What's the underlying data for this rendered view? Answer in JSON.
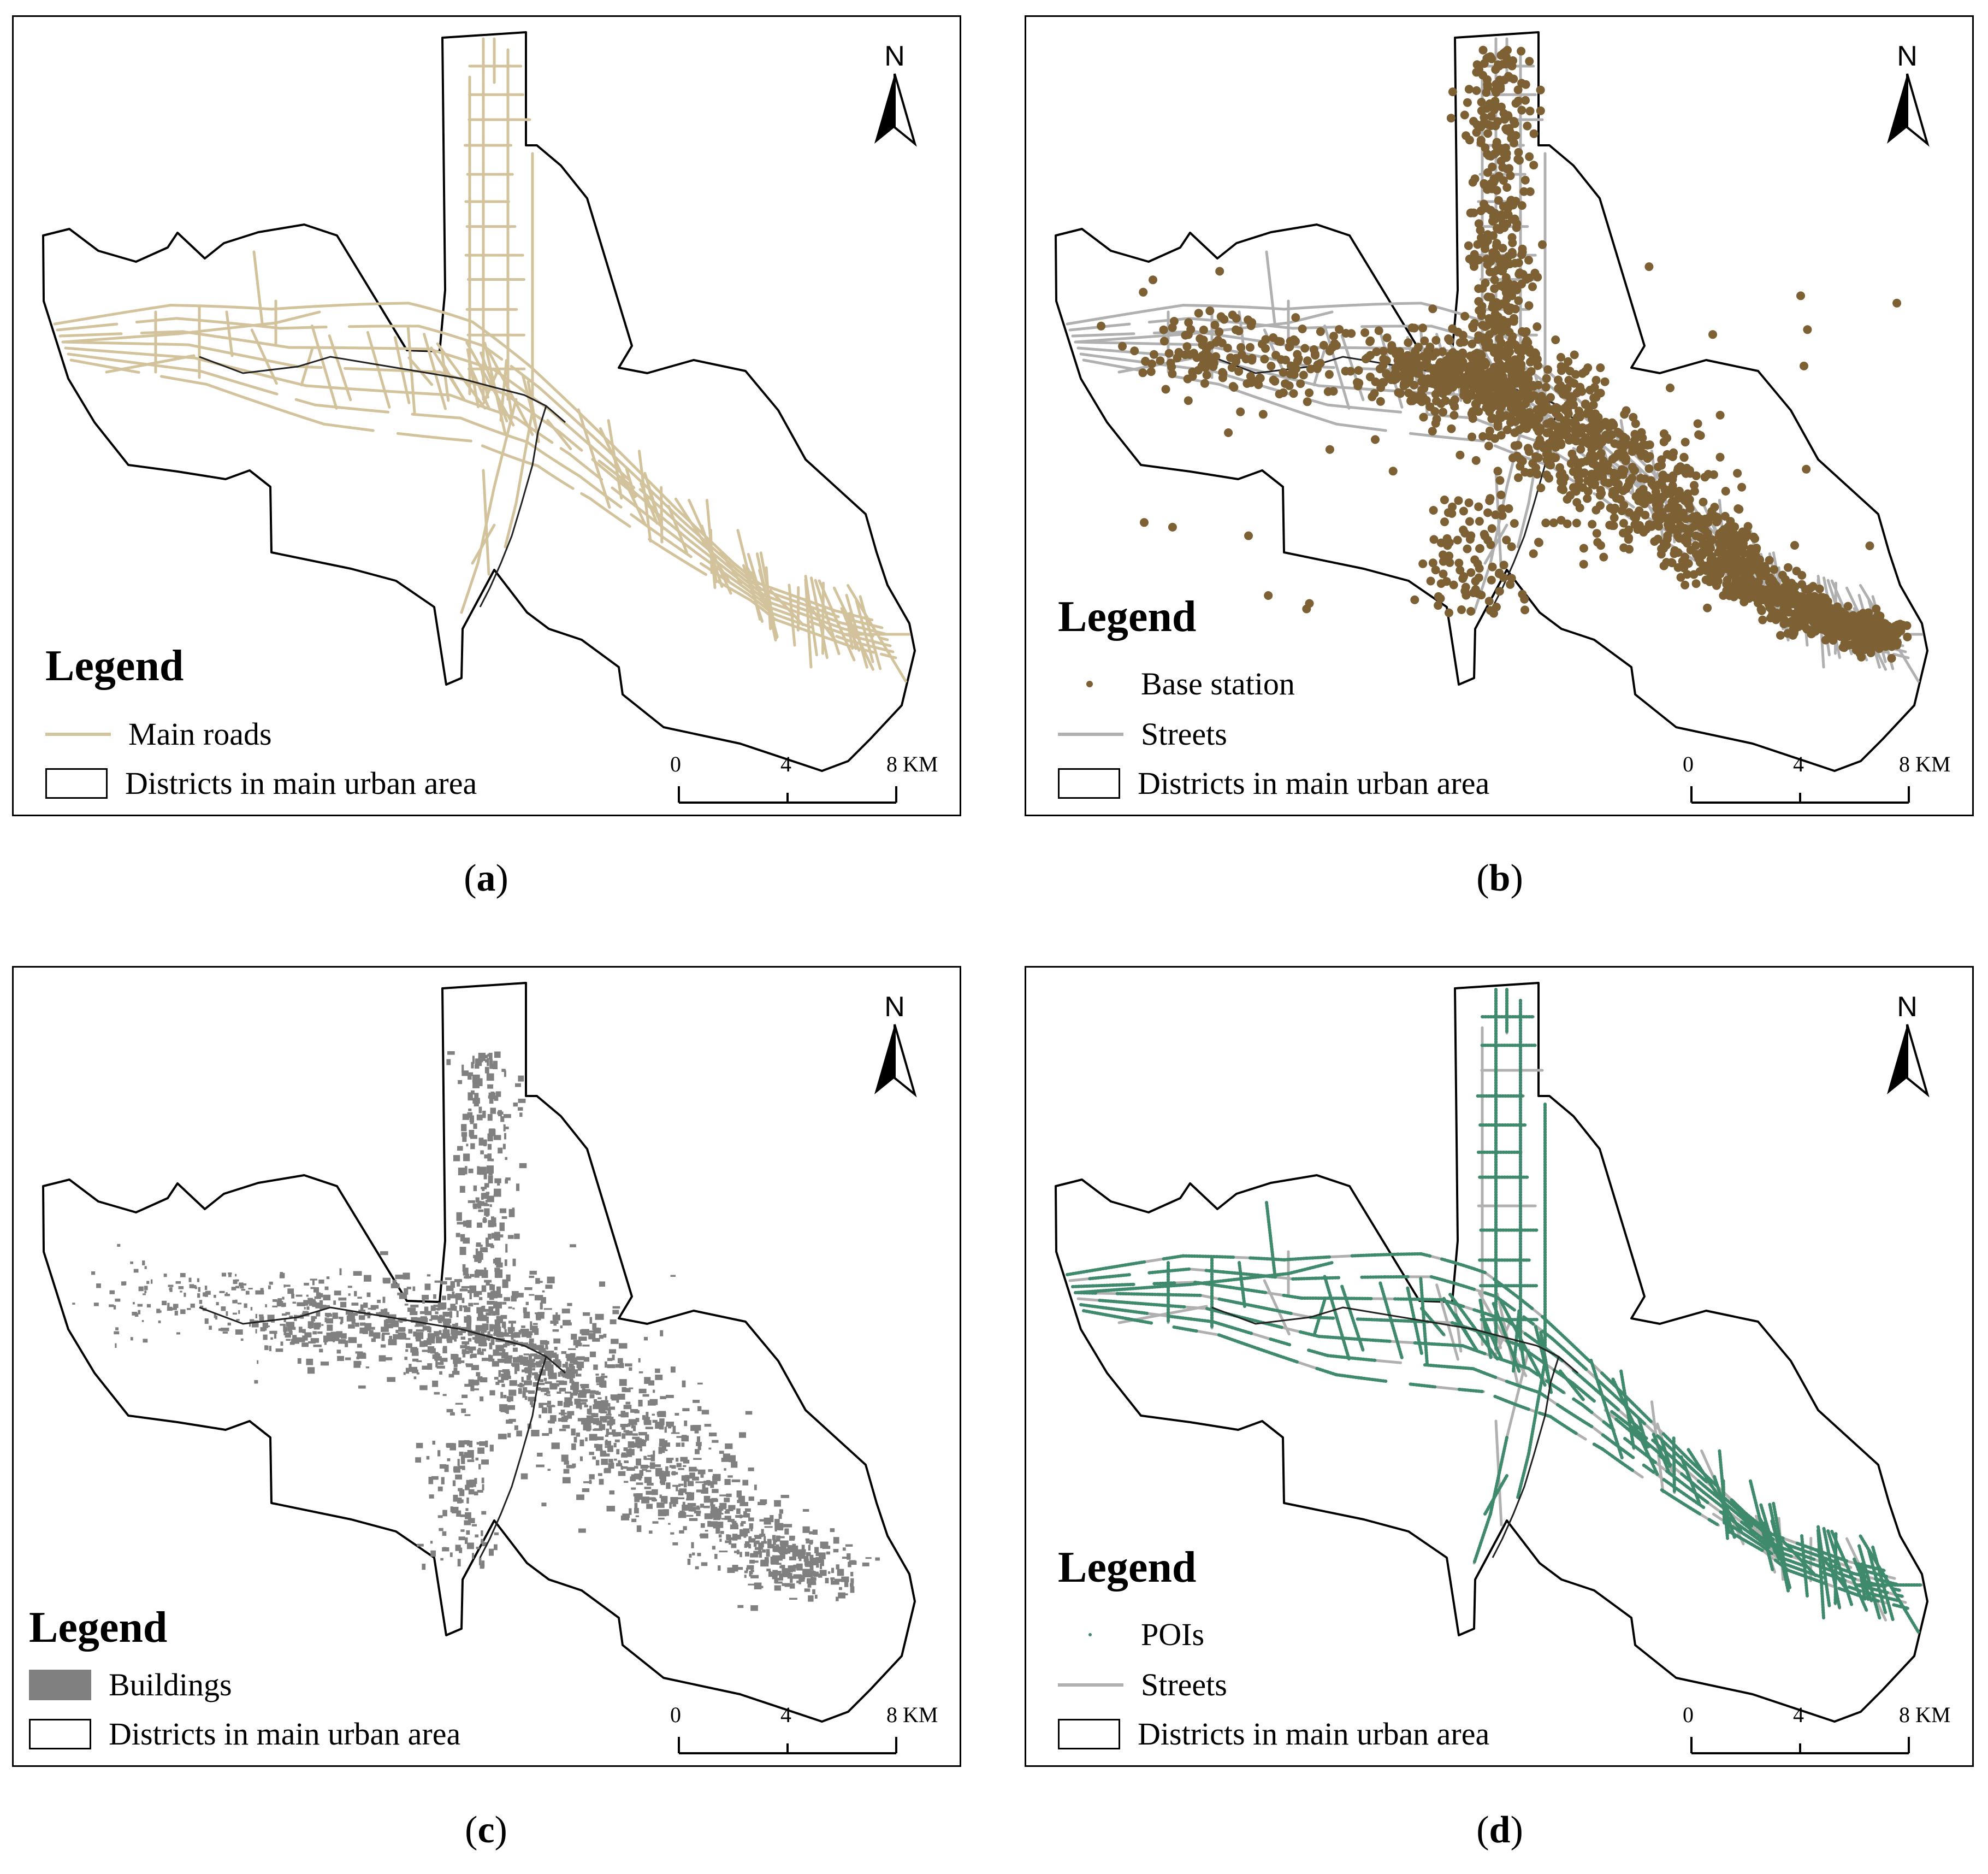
{
  "colors": {
    "roads": "#d3c39c",
    "base_station": "#7d6134",
    "streets": "#b0b0b0",
    "buildings": "#808080",
    "pois": "#3f8a6c",
    "river": "#222222",
    "boundary": "#000000"
  },
  "north_label": "N",
  "scale": {
    "labels": [
      "0",
      "4",
      "8 KM"
    ]
  },
  "legend_title": "Legend",
  "panels": [
    {
      "caption": "a",
      "legend": [
        "Main roads",
        "Districts in main urban area"
      ]
    },
    {
      "caption": "b",
      "legend": [
        "Base station",
        "Streets",
        "Districts in main urban area"
      ]
    },
    {
      "caption": "c",
      "legend": [
        "Buildings",
        "Districts in main urban area"
      ]
    },
    {
      "caption": "d",
      "legend": [
        "POIs",
        "Streets",
        "Districts in main urban area"
      ]
    }
  ]
}
